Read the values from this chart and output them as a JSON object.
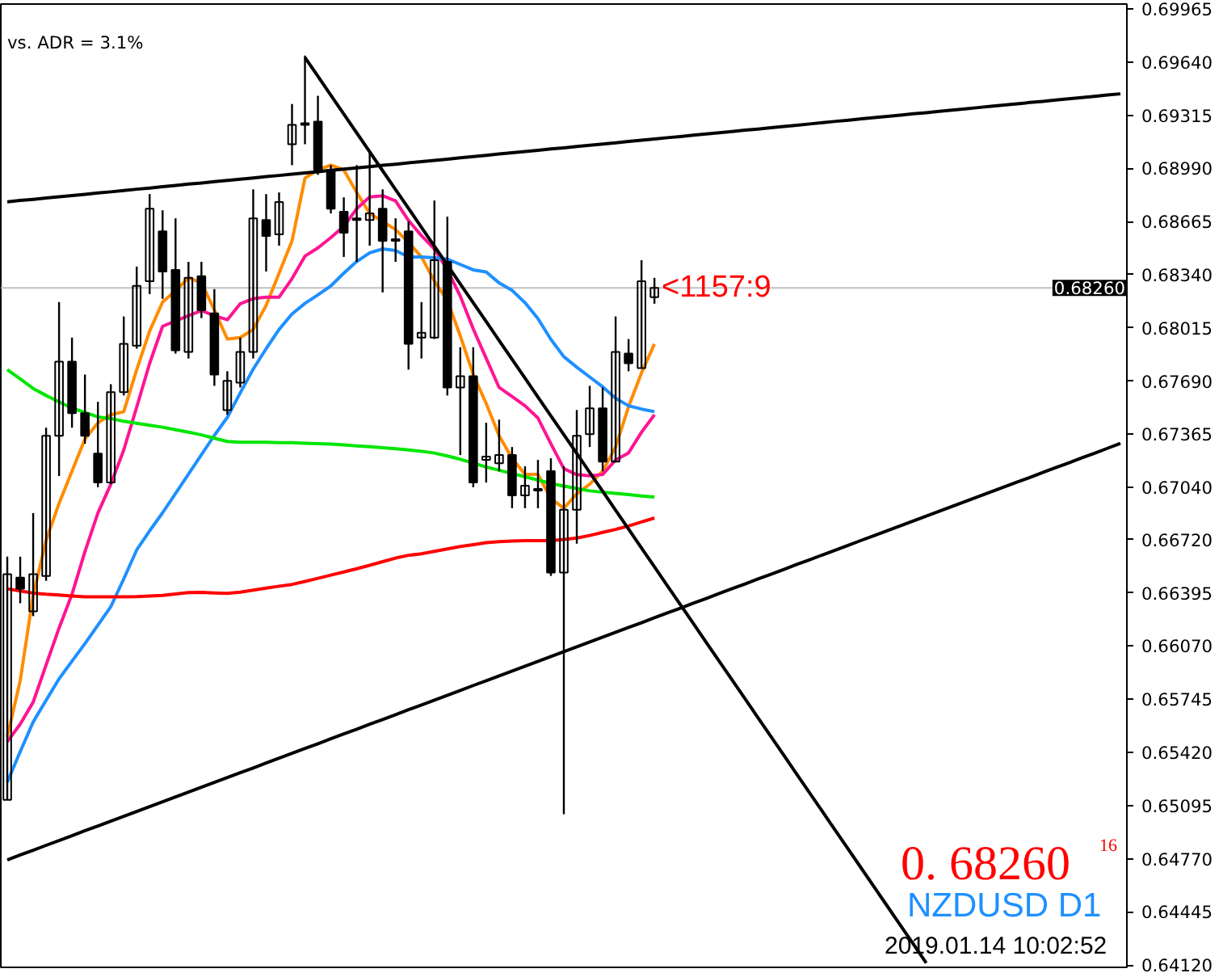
{
  "chart_data": {
    "type": "candlestick",
    "categories": [
      null,
      null,
      null,
      null,
      null,
      null,
      null,
      null,
      null,
      null,
      null,
      null,
      null,
      null,
      null,
      null,
      null,
      null,
      null,
      null,
      null,
      null,
      null,
      null,
      null,
      null,
      null,
      null,
      null,
      null,
      null,
      null,
      null,
      null,
      null,
      null,
      null,
      null,
      null,
      null,
      null,
      null,
      null,
      null,
      null,
      null,
      null,
      null,
      null,
      null,
      null,
      null,
      null,
      null,
      null,
      null,
      null,
      null,
      null,
      null,
      null,
      null,
      null,
      null,
      null,
      null,
      null,
      null,
      null,
      null,
      null,
      null,
      null,
      null,
      null,
      null,
      null,
      null,
      null,
      null,
      null,
      null,
      null,
      null,
      null,
      null,
      null
    ],
    "ohlc": [
      [
        0.6513,
        0.66617,
        0.6513,
        0.66509
      ],
      [
        0.66489,
        0.66617,
        0.66332,
        0.6642
      ],
      [
        0.66282,
        0.66883,
        0.66253,
        0.66509
      ],
      [
        0.66499,
        0.67405,
        0.66469,
        0.67356
      ],
      [
        0.67356,
        0.68173,
        0.6711,
        0.67809
      ],
      [
        0.67809,
        0.67956,
        0.67405,
        0.67494
      ],
      [
        0.67494,
        0.6773,
        0.67307,
        0.67356
      ],
      [
        0.67247,
        0.67563,
        0.67041,
        0.6707
      ],
      [
        0.6707,
        0.67671,
        0.6706,
        0.67622
      ],
      [
        0.67622,
        0.68085,
        0.67602,
        0.67917
      ],
      [
        0.67907,
        0.6839,
        0.67888,
        0.68272
      ],
      [
        0.68301,
        0.68833,
        0.68222,
        0.68744
      ],
      [
        0.68606,
        0.68734,
        0.68193,
        0.6836
      ],
      [
        0.6837,
        0.68685,
        0.67858,
        0.67878
      ],
      [
        0.67868,
        0.68419,
        0.67828,
        0.68321
      ],
      [
        0.68331,
        0.68419,
        0.68075,
        0.68124
      ],
      [
        0.68104,
        0.68252,
        0.67661,
        0.6773
      ],
      [
        0.67513,
        0.6775,
        0.67484,
        0.67691
      ],
      [
        0.67681,
        0.67956,
        0.67651,
        0.67868
      ],
      [
        0.67868,
        0.68862,
        0.67828,
        0.68685
      ],
      [
        0.68675,
        0.68833,
        0.6836,
        0.68577
      ],
      [
        0.68587,
        0.68843,
        0.68518,
        0.68784
      ],
      [
        0.69138,
        0.69384,
        0.6901,
        0.69256
      ],
      [
        0.69266,
        0.6968,
        0.69138,
        0.69256
      ],
      [
        0.69276,
        0.69434,
        0.68951,
        0.68981
      ],
      [
        0.68981,
        0.6901,
        0.68715,
        0.68744
      ],
      [
        0.68725,
        0.68813,
        0.68449,
        0.68597
      ],
      [
        0.68685,
        0.6901,
        0.68419,
        0.68675
      ],
      [
        0.68675,
        0.69089,
        0.68518,
        0.68715
      ],
      [
        0.68744,
        0.68862,
        0.68232,
        0.68547
      ],
      [
        0.68557,
        0.68685,
        0.68419,
        0.68547
      ],
      [
        0.68606,
        0.68666,
        0.6776,
        0.67917
      ],
      [
        0.67956,
        0.68173,
        0.67828,
        0.67986
      ],
      [
        0.67956,
        0.68794,
        0.67947,
        0.68429
      ],
      [
        0.68419,
        0.68695,
        0.67602,
        0.67651
      ],
      [
        0.67651,
        0.67897,
        0.67238,
        0.6772
      ],
      [
        0.6772,
        0.67897,
        0.67041,
        0.6707
      ],
      [
        0.67208,
        0.67435,
        0.6707,
        0.67228
      ],
      [
        0.67188,
        0.67454,
        0.67139,
        0.67238
      ],
      [
        0.67238,
        0.67287,
        0.66913,
        0.66991
      ],
      [
        0.66991,
        0.67169,
        0.66913,
        0.6705
      ],
      [
        0.67031,
        0.67208,
        0.66913,
        0.67021
      ],
      [
        0.67139,
        0.67218,
        0.66499,
        0.66519
      ],
      [
        0.66519,
        0.67169,
        0.65042,
        0.66903
      ],
      [
        0.66903,
        0.67513,
        0.66696,
        0.67356
      ],
      [
        0.67366,
        0.67661,
        0.67287,
        0.67523
      ],
      [
        0.67523,
        0.67651,
        0.67139,
        0.67198
      ],
      [
        0.67198,
        0.68085,
        0.67198,
        0.67868
      ],
      [
        0.67858,
        0.67947,
        0.6775,
        0.67799
      ],
      [
        0.67769,
        0.68429,
        0.67769,
        0.68301
      ],
      [
        0.68203,
        0.68321,
        0.68163,
        0.6826
      ],
      null,
      null,
      null,
      null,
      null,
      null,
      null,
      null,
      null,
      null,
      null,
      null,
      null,
      null,
      null,
      null,
      null,
      null,
      null,
      null,
      null,
      null,
      null,
      null,
      null,
      null,
      null,
      null,
      null,
      null,
      null,
      null,
      null,
      null,
      null,
      null
    ],
    "series": [
      {
        "type": "line",
        "color": "#ff8c00",
        "values": [
          0.65514,
          0.65859,
          0.66381,
          0.66716,
          0.66942,
          0.6714,
          0.67336,
          0.67435,
          0.67484,
          0.67503,
          0.6776,
          0.67996,
          0.68173,
          0.68242,
          0.68321,
          0.68291,
          0.68124,
          0.67947,
          0.67956,
          0.68006,
          0.68153,
          0.6835,
          0.68547,
          0.68931,
          0.68981,
          0.6901,
          0.68981,
          0.68843,
          0.68715,
          0.68666,
          0.68616,
          0.68538,
          0.68449,
          0.68301,
          0.68183,
          0.67966,
          0.6773,
          0.67553,
          0.67356,
          0.67218,
          0.6712,
          0.6712,
          0.66972,
          0.66913,
          0.67001,
          0.6706,
          0.67139,
          0.67287,
          0.67533,
          0.6774,
          0.67917,
          null,
          null,
          null,
          null,
          null,
          null,
          null,
          null,
          null,
          null,
          null,
          null,
          null,
          null,
          null,
          null,
          null,
          null,
          null,
          null,
          null,
          null,
          null,
          null,
          null,
          null,
          null,
          null,
          null,
          null,
          null,
          null,
          null,
          null,
          null,
          null
        ]
      },
      {
        "type": "line",
        "color": "#ff1493",
        "values": [
          0.65485,
          0.65593,
          0.65727,
          0.65955,
          0.6618,
          0.66387,
          0.66647,
          0.66883,
          0.6706,
          0.67269,
          0.67531,
          0.67799,
          0.68025,
          0.68058,
          0.6809,
          0.68121,
          0.6809,
          0.68065,
          0.68163,
          0.68194,
          0.68203,
          0.68203,
          0.68316,
          0.68454,
          0.68504,
          0.68567,
          0.68636,
          0.68744,
          0.68816,
          0.68823,
          0.68791,
          0.68672,
          0.68579,
          0.68498,
          0.6837,
          0.68209,
          0.68009,
          0.67829,
          0.67651,
          0.67596,
          0.67539,
          0.67464,
          0.67307,
          0.67155,
          0.67118,
          0.67111,
          0.67119,
          0.67208,
          0.67251,
          0.67377,
          0.67484,
          null,
          null,
          null,
          null,
          null,
          null,
          null,
          null,
          null,
          null,
          null,
          null,
          null,
          null,
          null,
          null,
          null,
          null,
          null,
          null,
          null,
          null,
          null,
          null,
          null,
          null,
          null,
          null,
          null,
          null,
          null,
          null,
          null,
          null,
          null,
          null
        ]
      },
      {
        "type": "line",
        "color": "#1e90ff",
        "values": [
          0.65238,
          0.65425,
          0.65606,
          0.65739,
          0.6587,
          0.65978,
          0.66085,
          0.66198,
          0.66311,
          0.66481,
          0.66658,
          0.66775,
          0.66885,
          0.67003,
          0.67121,
          0.6724,
          0.67358,
          0.67468,
          0.67618,
          0.67763,
          0.67888,
          0.68006,
          0.681,
          0.68165,
          0.68217,
          0.68272,
          0.6835,
          0.68421,
          0.68474,
          0.68498,
          0.68488,
          0.68449,
          0.68449,
          0.68444,
          0.68436,
          0.68403,
          0.6837,
          0.68357,
          0.6829,
          0.68245,
          0.68169,
          0.68072,
          0.67945,
          0.67839,
          0.67775,
          0.67715,
          0.67655,
          0.67585,
          0.67539,
          0.67519,
          0.67503,
          null,
          null,
          null,
          null,
          null,
          null,
          null,
          null,
          null,
          null,
          null,
          null,
          null,
          null,
          null,
          null,
          null,
          null,
          null,
          null,
          null,
          null,
          null,
          null,
          null,
          null,
          null,
          null,
          null,
          null,
          null,
          null,
          null,
          null,
          null,
          null
        ]
      },
      {
        "type": "line",
        "color": "#00e600",
        "values": [
          0.6776,
          0.67703,
          0.67645,
          0.67602,
          0.67563,
          0.67525,
          0.67498,
          0.67471,
          0.67461,
          0.67444,
          0.67432,
          0.6742,
          0.67408,
          0.67393,
          0.67378,
          0.67361,
          0.67341,
          0.67321,
          0.67316,
          0.67316,
          0.67316,
          0.67314,
          0.67313,
          0.6731,
          0.67308,
          0.67305,
          0.673,
          0.67294,
          0.67289,
          0.67283,
          0.67276,
          0.67269,
          0.67261,
          0.6725,
          0.67232,
          0.67212,
          0.67189,
          0.67165,
          0.67145,
          0.67125,
          0.67105,
          0.67085,
          0.67064,
          0.67048,
          0.67033,
          0.67019,
          0.67011,
          0.67003,
          0.66996,
          0.66988,
          0.66981,
          null,
          null,
          null,
          null,
          null,
          null,
          null,
          null,
          null,
          null,
          null,
          null,
          null,
          null,
          null,
          null,
          null,
          null,
          null,
          null,
          null,
          null,
          null,
          null,
          null,
          null,
          null,
          null,
          null,
          null,
          null,
          null,
          null,
          null,
          null,
          null
        ]
      },
      {
        "type": "line",
        "color": "#ff0000",
        "values": [
          0.6642,
          0.66407,
          0.66394,
          0.66387,
          0.66382,
          0.66376,
          0.66371,
          0.66371,
          0.66371,
          0.66371,
          0.66372,
          0.66376,
          0.6638,
          0.66388,
          0.66397,
          0.66398,
          0.66395,
          0.66392,
          0.664,
          0.66412,
          0.66424,
          0.66436,
          0.66447,
          0.66465,
          0.66484,
          0.66504,
          0.66523,
          0.66543,
          0.66564,
          0.66586,
          0.66608,
          0.66625,
          0.66634,
          0.66649,
          0.66664,
          0.66679,
          0.6669,
          0.66702,
          0.66708,
          0.66712,
          0.66715,
          0.66715,
          0.66715,
          0.66722,
          0.66731,
          0.66746,
          0.66765,
          0.66783,
          0.66804,
          0.66829,
          0.66853,
          null,
          null,
          null,
          null,
          null,
          null,
          null,
          null,
          null,
          null,
          null,
          null,
          null,
          null,
          null,
          null,
          null,
          null,
          null,
          null,
          null,
          null,
          null,
          null,
          null,
          null,
          null,
          null,
          null,
          null,
          null,
          null,
          null,
          null,
          null,
          null
        ]
      },
      {
        "type": "line",
        "color": "#000000",
        "values": [
          0.68786,
          0.68794,
          0.68801,
          0.68809,
          0.68817,
          0.68824,
          0.68832,
          0.6884,
          0.68847,
          0.68855,
          0.68863,
          0.6887,
          0.68878,
          0.68886,
          0.68894,
          0.68901,
          0.68909,
          0.68917,
          0.68924,
          0.68932,
          0.6894,
          0.68947,
          0.68955,
          0.68963,
          0.6897,
          0.68978,
          0.68986,
          0.68993,
          0.69001,
          0.69009,
          0.69016,
          0.69024,
          0.69032,
          0.69039,
          0.69047,
          0.69055,
          0.69062,
          0.6907,
          0.69078,
          0.69086,
          0.69093,
          0.69101,
          0.69109,
          0.69116,
          0.69124,
          0.69132,
          0.69139,
          0.69147,
          0.69155,
          0.69162,
          0.6917,
          0.69178,
          0.69185,
          0.69193,
          0.69201,
          0.69208,
          0.69216,
          0.69224,
          0.69231,
          0.69239,
          0.69247,
          0.69254,
          0.69262,
          0.6927,
          0.69278,
          0.69285,
          0.69293,
          0.69301,
          0.69308,
          0.69316,
          0.69324,
          0.69331,
          0.69339,
          0.69347,
          0.69354,
          0.69362,
          0.6937,
          0.69377,
          0.69385,
          0.69393,
          0.694,
          0.69408,
          0.69416,
          0.69423,
          0.69431,
          0.69439,
          0.69446
        ]
      },
      {
        "type": "line",
        "color": "#000000",
        "values": [
          0.64763,
          0.64793,
          0.64822,
          0.64852,
          0.64881,
          0.64911,
          0.64941,
          0.6497,
          0.65,
          0.65029,
          0.65059,
          0.65089,
          0.65118,
          0.65148,
          0.65177,
          0.65207,
          0.65237,
          0.65266,
          0.65296,
          0.65325,
          0.65355,
          0.65385,
          0.65414,
          0.65444,
          0.65473,
          0.65503,
          0.65533,
          0.65562,
          0.65592,
          0.65621,
          0.65651,
          0.65681,
          0.6571,
          0.6574,
          0.65769,
          0.65799,
          0.65829,
          0.65858,
          0.65888,
          0.65917,
          0.65947,
          0.65977,
          0.66006,
          0.66036,
          0.66065,
          0.66095,
          0.66125,
          0.66154,
          0.66184,
          0.66213,
          0.66243,
          0.66273,
          0.66302,
          0.66332,
          0.66361,
          0.66391,
          0.66421,
          0.6645,
          0.6648,
          0.66509,
          0.66539,
          0.66569,
          0.66598,
          0.66628,
          0.66657,
          0.66687,
          0.66717,
          0.66746,
          0.66776,
          0.66805,
          0.66835,
          0.66865,
          0.66894,
          0.66924,
          0.66953,
          0.66983,
          0.67013,
          0.67042,
          0.67072,
          0.67101,
          0.67131,
          0.67161,
          0.6719,
          0.6722,
          0.67249,
          0.67279,
          0.67309
        ]
      },
      {
        "type": "line",
        "color": "#000000",
        "values": [
          null,
          null,
          null,
          null,
          null,
          null,
          null,
          null,
          null,
          null,
          null,
          null,
          null,
          null,
          null,
          null,
          null,
          null,
          null,
          null,
          null,
          null,
          null,
          0.69668,
          0.69553,
          0.69437,
          0.69322,
          0.69207,
          0.69091,
          0.68976,
          0.68861,
          0.68746,
          0.6863,
          0.68515,
          0.684,
          0.68284,
          0.68169,
          0.68054,
          0.67938,
          0.67823,
          0.67708,
          0.67592,
          0.67477,
          0.67362,
          0.67247,
          0.67131,
          0.67016,
          0.66901,
          0.66785,
          0.6667,
          0.66555,
          0.66439,
          0.66324,
          0.66209,
          0.66093,
          0.65978,
          0.65863,
          0.65748,
          0.65632,
          0.65517,
          0.65402,
          0.65286,
          0.65171,
          0.65056,
          0.6494,
          0.64825,
          0.6471,
          0.64594,
          0.64479,
          0.64364,
          0.64249,
          0.64133,
          null,
          null,
          null,
          null,
          null,
          null,
          null,
          null,
          null,
          null,
          null,
          null,
          null,
          null,
          null
        ]
      }
    ],
    "ylim": [
      0.64106,
      0.69995
    ],
    "yticks": [
      {
        "value": 0.69965,
        "label": "0.69965"
      },
      {
        "value": 0.6964,
        "label": "0.69640"
      },
      {
        "value": 0.69315,
        "label": "0.69315"
      },
      {
        "value": 0.6899,
        "label": "0.68990"
      },
      {
        "value": 0.68665,
        "label": "0.68665"
      },
      {
        "value": 0.6834,
        "label": "0.68340"
      },
      {
        "value": 0.68015,
        "label": "0.68015"
      },
      {
        "value": 0.6769,
        "label": "0.67690"
      },
      {
        "value": 0.67365,
        "label": "0.67365"
      },
      {
        "value": 0.6704,
        "label": "0.67040"
      },
      {
        "value": 0.6672,
        "label": "0.66720"
      },
      {
        "value": 0.66395,
        "label": "0.66395"
      },
      {
        "value": 0.6607,
        "label": "0.66070"
      },
      {
        "value": 0.65745,
        "label": "0.65745"
      },
      {
        "value": 0.6542,
        "label": "0.65420"
      },
      {
        "value": 0.65095,
        "label": "0.65095"
      },
      {
        "value": 0.6477,
        "label": "0.64770"
      },
      {
        "value": 0.64445,
        "label": "0.64445"
      },
      {
        "value": 0.6412,
        "label": "0.64120"
      }
    ],
    "tick_labels": "y",
    "ref_lines": [
      {
        "axis": "y",
        "value": 0.6826,
        "label": "0.68260",
        "color": "#c0c0c0"
      }
    ],
    "annotations": [
      "vs. ADR = 3.1%",
      {
        "text": "<1157:9",
        "y": 0.6826
      },
      "0. 68260",
      "16",
      "NZDUSD D1",
      "2019.01.14 10:02:52"
    ]
  }
}
